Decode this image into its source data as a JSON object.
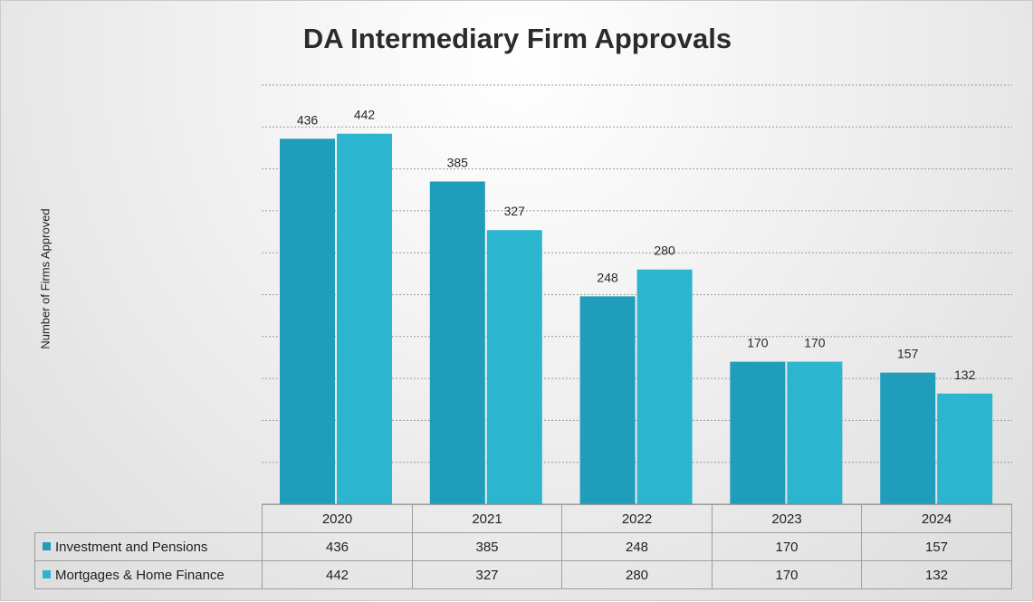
{
  "chart_data": {
    "type": "bar",
    "title": "DA Intermediary Firm Approvals",
    "ylabel": "Number of Firms Approved",
    "xlabel": "",
    "categories": [
      "2020",
      "2021",
      "2022",
      "2023",
      "2024"
    ],
    "series": [
      {
        "name": "Investment and Pensions",
        "values": [
          436,
          385,
          248,
          170,
          157
        ],
        "color": "#1f9dba"
      },
      {
        "name": "Mortgages & Home Finance",
        "values": [
          442,
          327,
          280,
          170,
          132
        ],
        "color": "#2cb5cf"
      }
    ],
    "ylim": [
      0,
      500
    ],
    "gridlines": true,
    "legend": "data-table",
    "data_labels": true
  }
}
